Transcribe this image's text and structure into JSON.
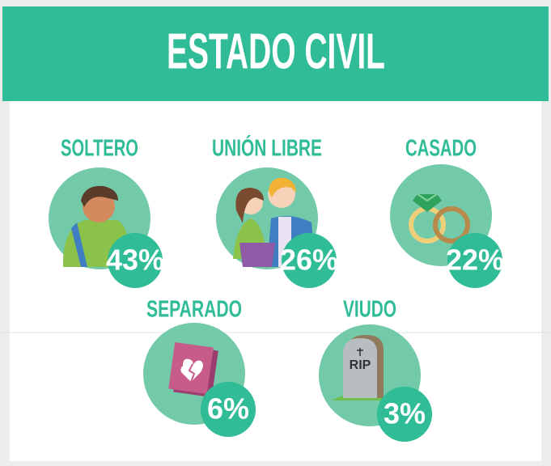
{
  "header": {
    "title": "ESTADO CIVIL"
  },
  "items": [
    {
      "label": "SOLTERO",
      "value": "43%"
    },
    {
      "label": "UNIÓN LIBRE",
      "value": "26%"
    },
    {
      "label": "CASADO",
      "value": "22%"
    },
    {
      "label": "SEPARADO",
      "value": "6%"
    },
    {
      "label": "VIUDO",
      "value": "3%"
    }
  ]
}
